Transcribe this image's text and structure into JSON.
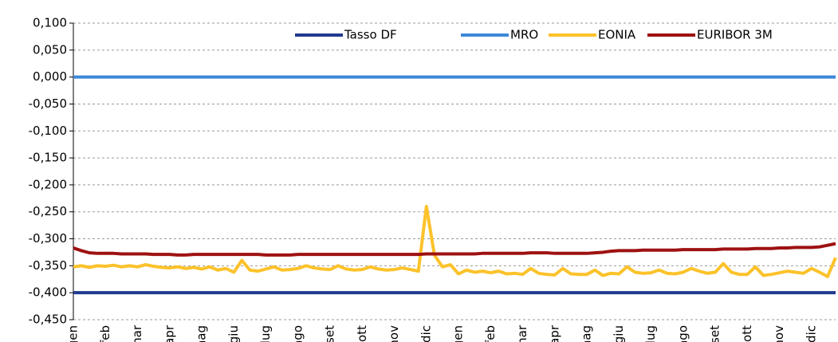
{
  "chart_data": {
    "type": "line",
    "categories": [
      "gen",
      null,
      null,
      null,
      "feb",
      null,
      null,
      null,
      "mar",
      null,
      null,
      null,
      "apr",
      null,
      null,
      null,
      "mag",
      null,
      null,
      null,
      "giu",
      null,
      null,
      null,
      "lug",
      null,
      null,
      null,
      "ago",
      null,
      null,
      null,
      "set",
      null,
      null,
      null,
      "ott",
      null,
      null,
      null,
      "nov",
      null,
      null,
      null,
      "dic",
      null,
      null,
      null,
      "gen",
      null,
      null,
      null,
      "feb",
      null,
      null,
      null,
      "mar",
      null,
      null,
      null,
      "apr",
      null,
      null,
      null,
      "mag",
      null,
      null,
      null,
      "giu",
      null,
      null,
      null,
      "lug",
      null,
      null,
      null,
      "ago",
      null,
      null,
      null,
      "set",
      null,
      null,
      null,
      "ott",
      null,
      null,
      null,
      "nov",
      null,
      null,
      null,
      "dic",
      null,
      null,
      null
    ],
    "series": [
      {
        "name": "Tasso DF",
        "color": "#203a8f",
        "values": [
          -0.4,
          -0.4,
          -0.4,
          -0.4,
          -0.4,
          -0.4,
          -0.4,
          -0.4,
          -0.4,
          -0.4,
          -0.4,
          -0.4,
          -0.4,
          -0.4,
          -0.4,
          -0.4,
          -0.4,
          -0.4,
          -0.4,
          -0.4,
          -0.4,
          -0.4,
          -0.4,
          -0.4,
          -0.4,
          -0.4,
          -0.4,
          -0.4,
          -0.4,
          -0.4,
          -0.4,
          -0.4,
          -0.4,
          -0.4,
          -0.4,
          -0.4,
          -0.4,
          -0.4,
          -0.4,
          -0.4,
          -0.4,
          -0.4,
          -0.4,
          -0.4,
          -0.4,
          -0.4,
          -0.4,
          -0.4,
          -0.4,
          -0.4,
          -0.4,
          -0.4,
          -0.4,
          -0.4,
          -0.4,
          -0.4,
          -0.4,
          -0.4,
          -0.4,
          -0.4,
          -0.4,
          -0.4,
          -0.4,
          -0.4,
          -0.4,
          -0.4,
          -0.4,
          -0.4,
          -0.4,
          -0.4,
          -0.4,
          -0.4,
          -0.4,
          -0.4,
          -0.4,
          -0.4,
          -0.4,
          -0.4,
          -0.4,
          -0.4,
          -0.4,
          -0.4,
          -0.4,
          -0.4,
          -0.4,
          -0.4,
          -0.4,
          -0.4,
          -0.4,
          -0.4,
          -0.4,
          -0.4,
          -0.4,
          -0.4,
          -0.4,
          -0.4
        ]
      },
      {
        "name": "MRO",
        "color": "#3d88d9",
        "values": [
          0,
          0,
          0,
          0,
          0,
          0,
          0,
          0,
          0,
          0,
          0,
          0,
          0,
          0,
          0,
          0,
          0,
          0,
          0,
          0,
          0,
          0,
          0,
          0,
          0,
          0,
          0,
          0,
          0,
          0,
          0,
          0,
          0,
          0,
          0,
          0,
          0,
          0,
          0,
          0,
          0,
          0,
          0,
          0,
          0,
          0,
          0,
          0,
          0,
          0,
          0,
          0,
          0,
          0,
          0,
          0,
          0,
          0,
          0,
          0,
          0,
          0,
          0,
          0,
          0,
          0,
          0,
          0,
          0,
          0,
          0,
          0,
          0,
          0,
          0,
          0,
          0,
          0,
          0,
          0,
          0,
          0,
          0,
          0,
          0,
          0,
          0,
          0,
          0,
          0,
          0,
          0,
          0,
          0,
          0,
          0
        ]
      },
      {
        "name": "EONIA",
        "color": "#fcc22a",
        "values": [
          -0.352,
          -0.35,
          -0.353,
          -0.35,
          -0.351,
          -0.349,
          -0.352,
          -0.35,
          -0.352,
          -0.348,
          -0.351,
          -0.353,
          -0.354,
          -0.352,
          -0.355,
          -0.353,
          -0.356,
          -0.352,
          -0.358,
          -0.355,
          -0.362,
          -0.34,
          -0.358,
          -0.36,
          -0.356,
          -0.352,
          -0.358,
          -0.357,
          -0.355,
          -0.35,
          -0.354,
          -0.356,
          -0.357,
          -0.35,
          -0.356,
          -0.358,
          -0.357,
          -0.352,
          -0.356,
          -0.358,
          -0.357,
          -0.354,
          -0.357,
          -0.36,
          -0.24,
          -0.33,
          -0.352,
          -0.348,
          -0.365,
          -0.358,
          -0.362,
          -0.36,
          -0.363,
          -0.36,
          -0.365,
          -0.364,
          -0.366,
          -0.355,
          -0.364,
          -0.366,
          -0.367,
          -0.355,
          -0.365,
          -0.366,
          -0.366,
          -0.358,
          -0.368,
          -0.364,
          -0.365,
          -0.352,
          -0.362,
          -0.364,
          -0.363,
          -0.358,
          -0.364,
          -0.365,
          -0.362,
          -0.355,
          -0.36,
          -0.364,
          -0.362,
          -0.346,
          -0.362,
          -0.366,
          -0.366,
          -0.352,
          -0.368,
          -0.366,
          -0.363,
          -0.36,
          -0.362,
          -0.364,
          -0.355,
          -0.362,
          -0.37,
          -0.335
        ]
      },
      {
        "name": "EURIBOR 3M",
        "color": "#9e1111",
        "values": [
          -0.317,
          -0.322,
          -0.326,
          -0.327,
          -0.327,
          -0.327,
          -0.328,
          -0.328,
          -0.328,
          -0.328,
          -0.329,
          -0.329,
          -0.329,
          -0.33,
          -0.33,
          -0.329,
          -0.329,
          -0.329,
          -0.329,
          -0.329,
          -0.329,
          -0.329,
          -0.329,
          -0.329,
          -0.33,
          -0.33,
          -0.33,
          -0.33,
          -0.329,
          -0.329,
          -0.329,
          -0.329,
          -0.329,
          -0.329,
          -0.329,
          -0.329,
          -0.329,
          -0.329,
          -0.329,
          -0.329,
          -0.329,
          -0.329,
          -0.329,
          -0.329,
          -0.328,
          -0.328,
          -0.328,
          -0.328,
          -0.328,
          -0.328,
          -0.328,
          -0.327,
          -0.327,
          -0.327,
          -0.327,
          -0.327,
          -0.327,
          -0.326,
          -0.326,
          -0.326,
          -0.327,
          -0.327,
          -0.327,
          -0.327,
          -0.327,
          -0.326,
          -0.325,
          -0.323,
          -0.322,
          -0.322,
          -0.322,
          -0.321,
          -0.321,
          -0.321,
          -0.321,
          -0.321,
          -0.32,
          -0.32,
          -0.32,
          -0.32,
          -0.32,
          -0.319,
          -0.319,
          -0.319,
          -0.319,
          -0.318,
          -0.318,
          -0.318,
          -0.317,
          -0.317,
          -0.316,
          -0.316,
          -0.316,
          -0.315,
          -0.312,
          -0.309
        ]
      }
    ],
    "ylim": [
      -0.45,
      0.1
    ],
    "yticks": [
      {
        "value": 0.1,
        "label": "0,100"
      },
      {
        "value": 0.05,
        "label": "0,050"
      },
      {
        "value": 0,
        "label": "0,000"
      },
      {
        "value": -0.05,
        "label": "-0,050"
      },
      {
        "value": -0.1,
        "label": "-0,100"
      },
      {
        "value": -0.15,
        "label": "-0,150"
      },
      {
        "value": -0.2,
        "label": "-0,200"
      },
      {
        "value": -0.25,
        "label": "-0,250"
      },
      {
        "value": -0.3,
        "label": "-0,300"
      },
      {
        "value": -0.35,
        "label": "-0,350"
      },
      {
        "value": -0.4,
        "label": "-0,400"
      },
      {
        "value": -0.45,
        "label": "-0,450"
      }
    ],
    "grid": true,
    "legend": "top"
  }
}
